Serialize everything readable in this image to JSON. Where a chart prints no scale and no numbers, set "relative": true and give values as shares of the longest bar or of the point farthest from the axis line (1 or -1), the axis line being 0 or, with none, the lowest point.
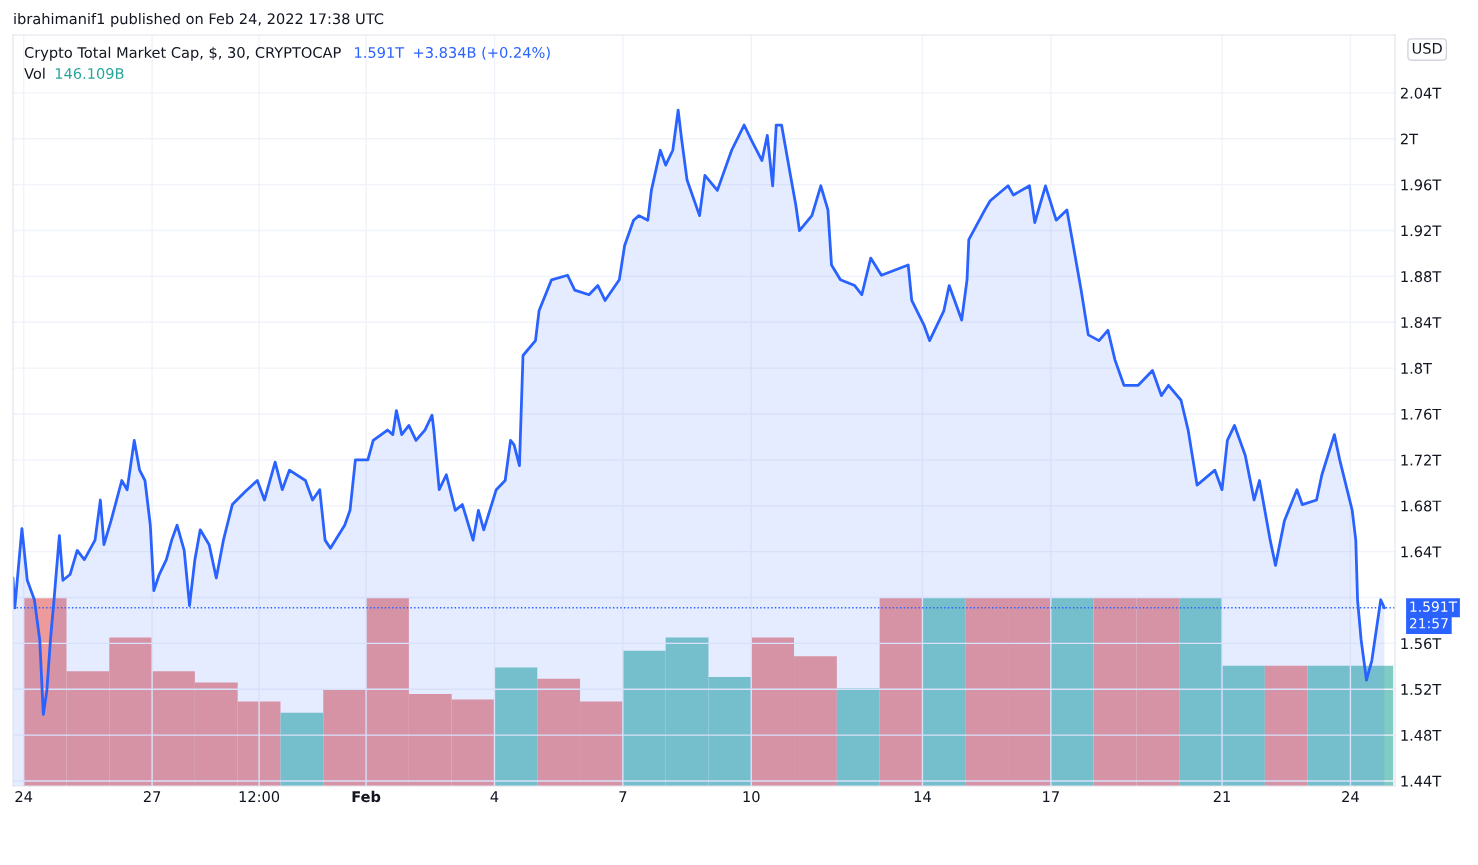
{
  "chart_data": [
    {
      "type": "area",
      "title": "Crypto Total Market Cap, $, 30, CRYPTOCAP",
      "annotations": [
        "ibrahimanif1 published on Feb 24, 2022 17:38 UTC",
        "1.591T",
        "+3.834B (+0.24%)",
        "Vol",
        "146.109B",
        "USD",
        "21:57"
      ],
      "x": [
        "2022-01-23T18:00",
        "2022-01-23T19:00",
        "2022-01-23T23:00",
        "2022-01-24T02:00",
        "2022-01-24T06:00",
        "2022-01-24T09:00",
        "2022-01-24T11:00",
        "2022-01-24T13:00",
        "2022-01-24T15:00",
        "2022-01-24T17:00",
        "2022-01-24T20:00",
        "2022-01-24T22:00",
        "2022-01-25T02:00",
        "2022-01-25T06:00",
        "2022-01-25T10:00",
        "2022-01-25T16:00",
        "2022-01-25T19:00",
        "2022-01-25T21:00",
        "2022-01-26T01:00",
        "2022-01-26T07:00",
        "2022-01-26T10:00",
        "2022-01-26T14:00",
        "2022-01-26T17:00",
        "2022-01-26T20:00",
        "2022-01-26T23:00",
        "2022-01-27T01:00",
        "2022-01-27T04:00",
        "2022-01-27T08:00",
        "2022-01-27T11:00",
        "2022-01-27T14:00",
        "2022-01-27T18:00",
        "2022-01-27T21:00",
        "2022-01-28T00:00",
        "2022-01-28T03:00",
        "2022-01-28T08:00",
        "2022-01-28T12:00",
        "2022-01-28T16:00",
        "2022-01-28T21:00",
        "2022-01-29T04:00",
        "2022-01-29T11:00",
        "2022-01-29T15:00",
        "2022-01-29T21:00",
        "2022-01-30T01:00",
        "2022-01-30T05:00",
        "2022-01-30T14:00",
        "2022-01-30T18:00",
        "2022-01-30T22:00",
        "2022-01-31T01:00",
        "2022-01-31T04:00",
        "2022-01-31T12:00",
        "2022-01-31T15:00",
        "2022-01-31T18:00",
        "2022-02-01T01:00",
        "2022-02-01T04:00",
        "2022-02-01T12:00",
        "2022-02-01T15:00",
        "2022-02-01T17:00",
        "2022-02-01T20:00",
        "2022-02-02T00:00",
        "2022-02-02T04:00",
        "2022-02-02T09:00",
        "2022-02-02T13:00",
        "2022-02-02T14:00",
        "2022-02-02T17:00",
        "2022-02-02T21:00",
        "2022-02-03T02:00",
        "2022-02-03T06:00",
        "2022-02-03T12:00",
        "2022-02-03T15:00",
        "2022-02-03T18:00",
        "2022-02-04T01:00",
        "2022-02-04T06:00",
        "2022-02-04T09:00",
        "2022-02-04T11:00",
        "2022-02-04T14:00",
        "2022-02-04T16:00",
        "2022-02-04T23:00",
        "2022-02-05T01:00",
        "2022-02-05T08:00",
        "2022-02-05T17:00",
        "2022-02-05T21:00",
        "2022-02-06T05:00",
        "2022-02-06T10:00",
        "2022-02-06T14:00",
        "2022-02-06T22:00",
        "2022-02-07T01:00",
        "2022-02-07T06:00",
        "2022-02-07T09:00",
        "2022-02-07T14:00",
        "2022-02-07T16:00",
        "2022-02-07T21:00",
        "2022-02-08T00:00",
        "2022-02-08T04:00",
        "2022-02-08T07:00",
        "2022-02-08T09:00",
        "2022-02-08T12:00",
        "2022-02-08T19:00",
        "2022-02-08T22:00",
        "2022-02-09T05:00",
        "2022-02-09T13:00",
        "2022-02-09T20:00",
        "2022-02-10T00:00",
        "2022-02-10T06:00",
        "2022-02-10T09:00",
        "2022-02-10T12:00",
        "2022-02-10T14:00",
        "2022-02-10T17:00",
        "2022-02-10T22:00",
        "2022-02-11T01:00",
        "2022-02-11T03:00",
        "2022-02-11T10:00",
        "2022-02-11T15:00",
        "2022-02-11T19:00",
        "2022-02-11T21:00",
        "2022-02-12T02:00",
        "2022-02-12T10:00",
        "2022-02-12T14:00",
        "2022-02-12T19:00",
        "2022-02-13T01:00",
        "2022-02-13T16:00",
        "2022-02-13T18:00",
        "2022-02-14T01:00",
        "2022-02-14T04:00",
        "2022-02-14T12:00",
        "2022-02-14T15:00",
        "2022-02-14T22:00",
        "2022-02-15T01:00",
        "2022-02-15T02:00",
        "2022-02-15T11:00",
        "2022-02-15T14:00",
        "2022-02-16T00:00",
        "2022-02-16T03:00",
        "2022-02-16T12:00",
        "2022-02-16T15:00",
        "2022-02-16T21:00",
        "2022-02-17T03:00",
        "2022-02-17T09:00",
        "2022-02-17T12:00",
        "2022-02-17T17:00",
        "2022-02-17T21:00",
        "2022-02-18T03:00",
        "2022-02-18T08:00",
        "2022-02-18T12:00",
        "2022-02-18T17:00",
        "2022-02-19T01:00",
        "2022-02-19T09:00",
        "2022-02-19T14:00",
        "2022-02-19T18:00",
        "2022-02-20T01:00",
        "2022-02-20T05:00",
        "2022-02-20T10:00",
        "2022-02-20T20:00",
        "2022-02-21T00:00",
        "2022-02-21T03:00",
        "2022-02-21T07:00",
        "2022-02-21T13:00",
        "2022-02-21T18:00",
        "2022-02-21T21:00",
        "2022-02-22T03:00",
        "2022-02-22T06:00",
        "2022-02-22T11:00",
        "2022-02-22T18:00",
        "2022-02-22T21:00",
        "2022-02-23T05:00",
        "2022-02-23T08:00",
        "2022-02-23T15:00",
        "2022-02-23T18:00",
        "2022-02-24T01:00",
        "2022-02-24T03:00",
        "2022-02-24T04:00",
        "2022-02-24T06:00",
        "2022-02-24T09:00",
        "2022-02-24T12:00",
        "2022-02-24T17:00",
        "2022-02-24T19:00"
      ],
      "series": [
        {
          "color": "#2962ff",
          "values": [
            1.617,
            1.591,
            1.66,
            1.615,
            1.598,
            1.563,
            1.498,
            1.519,
            1.563,
            1.598,
            1.654,
            1.615,
            1.62,
            1.641,
            1.633,
            1.65,
            1.685,
            1.646,
            1.667,
            1.702,
            1.694,
            1.737,
            1.711,
            1.702,
            1.663,
            1.606,
            1.62,
            1.633,
            1.65,
            1.663,
            1.641,
            1.593,
            1.633,
            1.659,
            1.646,
            1.617,
            1.65,
            1.681,
            1.692,
            1.702,
            1.685,
            1.718,
            1.694,
            1.711,
            1.702,
            1.685,
            1.694,
            1.65,
            1.643,
            1.663,
            1.676,
            1.72,
            1.72,
            1.737,
            1.746,
            1.742,
            1.763,
            1.742,
            1.75,
            1.737,
            1.746,
            1.759,
            1.746,
            1.694,
            1.707,
            1.676,
            1.681,
            1.65,
            1.676,
            1.659,
            1.694,
            1.702,
            1.737,
            1.733,
            1.715,
            1.811,
            1.824,
            1.85,
            1.877,
            1.881,
            1.868,
            1.864,
            1.872,
            1.859,
            1.877,
            1.907,
            1.929,
            1.933,
            1.929,
            1.955,
            1.99,
            1.977,
            1.99,
            2.025,
            1.999,
            1.964,
            1.933,
            1.968,
            1.955,
            1.99,
            2.012,
            1.999,
            1.981,
            2.003,
            1.959,
            2.012,
            2.012,
            1.968,
            1.942,
            1.92,
            1.933,
            1.959,
            1.938,
            1.89,
            1.877,
            1.872,
            1.864,
            1.896,
            1.881,
            1.89,
            1.859,
            1.837,
            1.824,
            1.85,
            1.872,
            1.842,
            1.877,
            1.912,
            1.938,
            1.946,
            1.959,
            1.951,
            1.959,
            1.927,
            1.959,
            1.929,
            1.938,
            1.912,
            1.868,
            1.829,
            1.824,
            1.833,
            1.807,
            1.785,
            1.785,
            1.798,
            1.776,
            1.785,
            1.772,
            1.746,
            1.698,
            1.711,
            1.694,
            1.737,
            1.75,
            1.724,
            1.685,
            1.702,
            1.65,
            1.628,
            1.667,
            1.694,
            1.681,
            1.685,
            1.707,
            1.742,
            1.72,
            1.676,
            1.65,
            1.598,
            1.563,
            1.528,
            1.545,
            1.598,
            1.591
          ]
        }
      ],
      "xlim": [
        "2022-01-23T18:00",
        "2022-02-25T01:00"
      ],
      "xticks": [
        {
          "value": "2022-01-24",
          "label": "24"
        },
        {
          "value": "2022-01-27",
          "label": "27"
        },
        {
          "value": "2022-01-29T12:00",
          "label": "12:00"
        },
        {
          "value": "2022-02-01",
          "label": "Feb"
        },
        {
          "value": "2022-02-04",
          "label": "4"
        },
        {
          "value": "2022-02-07",
          "label": "7"
        },
        {
          "value": "2022-02-10",
          "label": "10"
        },
        {
          "value": "2022-02-14",
          "label": "14"
        },
        {
          "value": "2022-02-17",
          "label": "17"
        },
        {
          "value": "2022-02-21",
          "label": "21"
        },
        {
          "value": "2022-02-24",
          "label": "24"
        }
      ],
      "ylim": [
        1.4356,
        2.0905
      ],
      "yticks": [
        {
          "value": 1.44,
          "label": "1.44T"
        },
        {
          "value": 1.48,
          "label": "1.48T"
        },
        {
          "value": 1.52,
          "label": "1.52T"
        },
        {
          "value": 1.56,
          "label": "1.56T"
        },
        {
          "value": 1.6,
          "label": null
        },
        {
          "value": 1.64,
          "label": "1.64T"
        },
        {
          "value": 1.68,
          "label": "1.68T"
        },
        {
          "value": 1.72,
          "label": "1.72T"
        },
        {
          "value": 1.76,
          "label": "1.76T"
        },
        {
          "value": 1.8,
          "label": "1.8T"
        },
        {
          "value": 1.84,
          "label": "1.84T"
        },
        {
          "value": 1.88,
          "label": "1.88T"
        },
        {
          "value": 1.92,
          "label": "1.92T"
        },
        {
          "value": 1.96,
          "label": "1.96T"
        },
        {
          "value": 2.0,
          "label": "2T"
        },
        {
          "value": 2.04,
          "label": "2.04T"
        }
      ],
      "ref_lines": [
        {
          "axis": "y",
          "value": 1.591,
          "label": "1.591T",
          "color": "#2962ff",
          "line_style": "dotted"
        }
      ],
      "grid": true,
      "legend": false
    },
    {
      "type": "bar",
      "relative": true,
      "tick_labels": false,
      "xlim": [
        "2022-01-23T18:00",
        "2022-02-25T01:00"
      ],
      "x": [
        "2022-01-24T12:00",
        "2022-01-25T12:00",
        "2022-01-26T12:00",
        "2022-01-27T12:00",
        "2022-01-28T12:00",
        "2022-01-29T12:00",
        "2022-01-30T12:00",
        "2022-01-31T12:00",
        "2022-02-01T12:00",
        "2022-02-02T12:00",
        "2022-02-03T12:00",
        "2022-02-04T12:00",
        "2022-02-05T12:00",
        "2022-02-06T12:00",
        "2022-02-07T12:00",
        "2022-02-08T12:00",
        "2022-02-09T12:00",
        "2022-02-10T12:00",
        "2022-02-11T12:00",
        "2022-02-12T12:00",
        "2022-02-13T12:00",
        "2022-02-14T12:00",
        "2022-02-15T12:00",
        "2022-02-16T12:00",
        "2022-02-17T12:00",
        "2022-02-18T12:00",
        "2022-02-19T12:00",
        "2022-02-20T12:00",
        "2022-02-21T12:00",
        "2022-02-22T12:00",
        "2022-02-23T12:00",
        "2022-02-24T12:00"
      ],
      "values": [
        1.0,
        0.61,
        0.79,
        0.61,
        0.55,
        0.45,
        0.39,
        0.51,
        1.0,
        0.49,
        0.46,
        0.63,
        0.57,
        0.45,
        0.72,
        0.79,
        0.58,
        0.79,
        0.69,
        0.52,
        1.0,
        1.0,
        1.0,
        1.0,
        1.0,
        1.0,
        1.0,
        1.0,
        0.64,
        0.64,
        0.64,
        0.64
      ],
      "colors": [
        "#ef9a9a",
        "#ef9a9a",
        "#ef9a9a",
        "#ef9a9a",
        "#ef9a9a",
        "#ef9a9a",
        "#80cbc4",
        "#ef9a9a",
        "#ef9a9a",
        "#ef9a9a",
        "#ef9a9a",
        "#80cbc4",
        "#ef9a9a",
        "#ef9a9a",
        "#80cbc4",
        "#80cbc4",
        "#80cbc4",
        "#ef9a9a",
        "#ef9a9a",
        "#80cbc4",
        "#ef9a9a",
        "#80cbc4",
        "#ef9a9a",
        "#ef9a9a",
        "#80cbc4",
        "#ef9a9a",
        "#ef9a9a",
        "#80cbc4",
        "#80cbc4",
        "#ef9a9a",
        "#80cbc4",
        "#80cbc4"
      ]
    }
  ]
}
